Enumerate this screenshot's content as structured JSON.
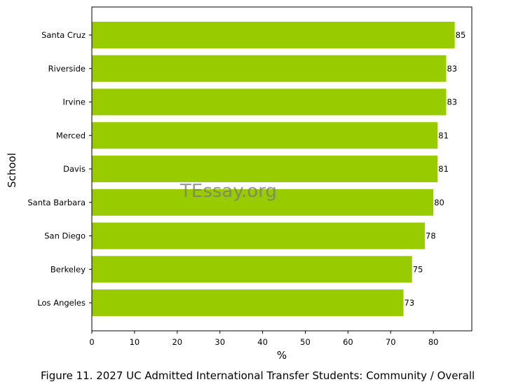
{
  "chart_data": {
    "type": "bar",
    "orientation": "horizontal",
    "categories": [
      "Santa Cruz",
      "Riverside",
      "Irvine",
      "Merced",
      "Davis",
      "Santa Barbara",
      "San Diego",
      "Berkeley",
      "Los Angeles"
    ],
    "values": [
      85,
      83,
      83,
      81,
      81,
      80,
      78,
      75,
      73
    ],
    "data_labels": [
      "85",
      "83",
      "83",
      "81",
      "81",
      "80",
      "78",
      "75",
      "73"
    ],
    "xlabel": "%",
    "ylabel": "School",
    "xlim": [
      0,
      89
    ],
    "xticks": [
      "0",
      "10",
      "20",
      "30",
      "40",
      "50",
      "60",
      "70",
      "80"
    ],
    "bar_color": "#99cc00",
    "grid": false,
    "legend": "none"
  },
  "watermark": "TEssay.org",
  "caption": "Figure 11. 2027 UC Admitted International Transfer Students: Community / Overall"
}
